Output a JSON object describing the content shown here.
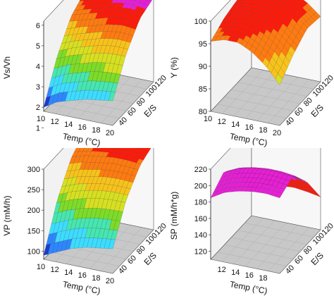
{
  "chart_data": [
    {
      "type": "surface3d",
      "zlabel": "Vs/Vh",
      "xlabel": "Temp (°C)",
      "ylabel": "E/S",
      "xticks": [
        "10",
        "12",
        "14",
        "16",
        "18",
        "20"
      ],
      "yticks": [
        "40",
        "60",
        "80",
        "100",
        "120"
      ],
      "zticks": [
        "1",
        "2",
        "3",
        "4",
        "5",
        "6"
      ],
      "xlim": [
        10,
        20
      ],
      "ylim": [
        30,
        120
      ],
      "zlim": [
        1.8,
        6.2
      ],
      "temp": [
        10,
        12,
        14,
        16,
        18,
        20
      ],
      "es": [
        30,
        60,
        90,
        120
      ],
      "z": [
        [
          2.0,
          3.8,
          5.0,
          5.5
        ],
        [
          2.4,
          4.1,
          5.2,
          5.7
        ],
        [
          2.6,
          4.3,
          5.4,
          5.9
        ],
        [
          2.8,
          4.5,
          5.6,
          6.0
        ],
        [
          2.9,
          4.6,
          5.7,
          6.0
        ],
        [
          3.0,
          4.6,
          5.6,
          5.9
        ]
      ],
      "colors": [
        "#1a3dcc",
        "#2e86ff",
        "#3ddcff",
        "#46e6b0",
        "#7ddc28",
        "#d6e020",
        "#f7c31a",
        "#ff7a10",
        "#ff1a0a",
        "#e61fd6"
      ]
    },
    {
      "type": "surface3d",
      "zlabel": "Y (%)",
      "xlabel": "Temp (°C)",
      "ylabel": "E/S",
      "xticks": [
        "10",
        "12",
        "14",
        "16",
        "18",
        "20"
      ],
      "yticks": [
        "40",
        "60",
        "80",
        "100",
        "120"
      ],
      "zticks": [
        "80",
        "85",
        "90",
        "95",
        "100"
      ],
      "xlim": [
        10,
        20
      ],
      "ylim": [
        30,
        120
      ],
      "zlim": [
        80,
        100
      ],
      "temp": [
        10,
        12,
        14,
        16,
        18,
        20
      ],
      "es": [
        30,
        60,
        90,
        120
      ],
      "z": [
        [
          95.5,
          97.5,
          98.5,
          98.0
        ],
        [
          96.5,
          98.5,
          99.5,
          99.0
        ],
        [
          96.5,
          98.5,
          99.5,
          99.0
        ],
        [
          95.0,
          97.5,
          99.0,
          98.5
        ],
        [
          92.5,
          95.5,
          97.5,
          97.0
        ],
        [
          89.0,
          92.5,
          95.0,
          94.5
        ]
      ],
      "colors": [
        "#46e6b0",
        "#7ddc28",
        "#d6e020",
        "#f7c31a",
        "#ff7a10",
        "#ff1a0a"
      ]
    },
    {
      "type": "surface3d",
      "zlabel": "VP (mM/h)",
      "xlabel": "Temp (°C)",
      "ylabel": "E/S",
      "xticks": [
        "10",
        "12",
        "14",
        "16",
        "18",
        "20"
      ],
      "yticks": [
        "40",
        "60",
        "80",
        "100",
        "120"
      ],
      "zticks": [
        "100",
        "150",
        "200",
        "250",
        "300"
      ],
      "xlim": [
        10,
        20
      ],
      "ylim": [
        30,
        120
      ],
      "zlim": [
        80,
        300
      ],
      "temp": [
        10,
        12,
        14,
        16,
        18,
        20
      ],
      "es": [
        30,
        60,
        90,
        120
      ],
      "z": [
        [
          90,
          190,
          255,
          285
        ],
        [
          105,
          205,
          265,
          290
        ],
        [
          120,
          215,
          270,
          295
        ],
        [
          130,
          222,
          275,
          295
        ],
        [
          135,
          225,
          275,
          293
        ],
        [
          140,
          225,
          272,
          290
        ]
      ],
      "colors": [
        "#1a3dcc",
        "#2e86ff",
        "#3ddcff",
        "#46e6b0",
        "#7ddc28",
        "#d6e020",
        "#f7c31a",
        "#ff7a10",
        "#ff1a0a"
      ]
    },
    {
      "type": "surface3d",
      "zlabel": "SP (mM/h*g)",
      "xlabel": "Temp (°C)",
      "ylabel": "E/S",
      "xticks": [
        "12",
        "14",
        "16",
        "18"
      ],
      "yticks": [
        "40",
        "60",
        "80",
        "100",
        "120"
      ],
      "zticks": [
        "120",
        "140",
        "160",
        "180",
        "200",
        "220"
      ],
      "xlim": [
        10,
        20
      ],
      "ylim": [
        30,
        120
      ],
      "zlim": [
        110,
        220
      ],
      "temp": [
        10,
        12,
        14,
        16,
        18,
        20
      ],
      "es": [
        30,
        60,
        90,
        120
      ],
      "z": [
        [
          185,
          200,
          178,
          140
        ],
        [
          195,
          208,
          185,
          150
        ],
        [
          200,
          212,
          188,
          153
        ],
        [
          203,
          214,
          190,
          155
        ],
        [
          204,
          214,
          189,
          153
        ],
        [
          202,
          212,
          186,
          150
        ]
      ],
      "colors": [
        "#ff7a10",
        "#ff1a0a",
        "#e61fd6"
      ]
    }
  ]
}
